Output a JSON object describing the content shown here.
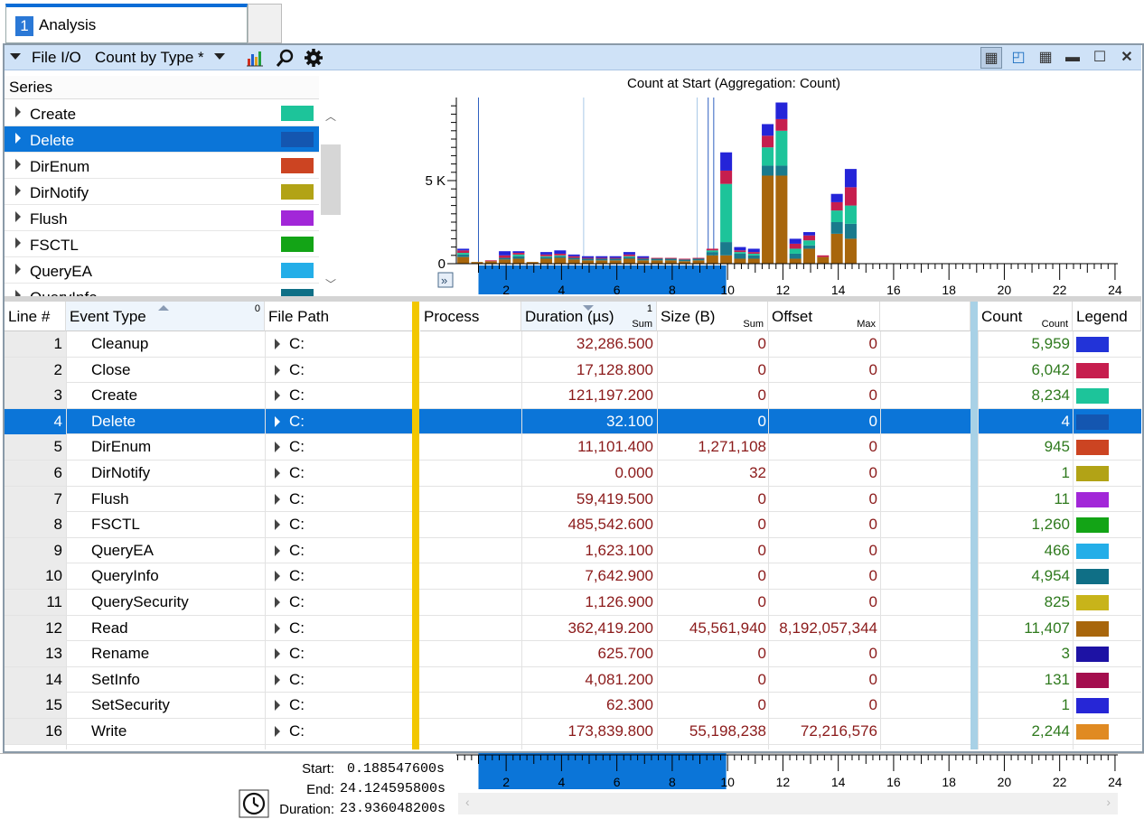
{
  "tab": {
    "number": "1",
    "label": "Analysis"
  },
  "toolbar": {
    "graph": "File I/O",
    "preset": "Count by Type *"
  },
  "series_header": "Series",
  "series": [
    {
      "label": "Create",
      "color": "#1dc49a"
    },
    {
      "label": "Delete",
      "color": "#1456b0"
    },
    {
      "label": "DirEnum",
      "color": "#cc4422"
    },
    {
      "label": "DirNotify",
      "color": "#b2a316"
    },
    {
      "label": "Flush",
      "color": "#a227d8"
    },
    {
      "label": "FSCTL",
      "color": "#13a416"
    },
    {
      "label": "QueryEA",
      "color": "#24aee8"
    },
    {
      "label": "QueryInfo",
      "color": "#0f6f86"
    }
  ],
  "chart_data": {
    "type": "bar",
    "title": "Count at Start (Aggregation: Count)",
    "y_ticks": [
      "0",
      "5 K"
    ],
    "x_ticks": [
      "2",
      "4",
      "6",
      "8",
      "10",
      "12",
      "14",
      "16",
      "18",
      "20",
      "22",
      "24"
    ],
    "xlim": [
      0.2,
      24.1
    ],
    "ylim": [
      0,
      10000
    ],
    "selection": [
      1.0,
      9.95
    ],
    "stack_colors": [
      "#a8660c",
      "#1a7a8c",
      "#1dc49a",
      "#c61e4e",
      "#2424d8"
    ],
    "bars": [
      {
        "x": 0.45,
        "stack": [
          400,
          150,
          100,
          150,
          100
        ]
      },
      {
        "x": 0.95,
        "stack": [
          100,
          0,
          0,
          0,
          0
        ]
      },
      {
        "x": 1.45,
        "stack": [
          150,
          0,
          0,
          50,
          0
        ]
      },
      {
        "x": 1.95,
        "stack": [
          250,
          100,
          0,
          150,
          250
        ]
      },
      {
        "x": 2.45,
        "stack": [
          300,
          150,
          100,
          100,
          100
        ]
      },
      {
        "x": 2.95,
        "stack": [
          100,
          0,
          0,
          0,
          0
        ]
      },
      {
        "x": 3.45,
        "stack": [
          300,
          100,
          50,
          100,
          150
        ]
      },
      {
        "x": 3.95,
        "stack": [
          350,
          100,
          50,
          100,
          200
        ]
      },
      {
        "x": 4.45,
        "stack": [
          250,
          100,
          0,
          100,
          100
        ]
      },
      {
        "x": 4.95,
        "stack": [
          200,
          100,
          0,
          50,
          100
        ]
      },
      {
        "x": 5.45,
        "stack": [
          200,
          100,
          0,
          50,
          100
        ]
      },
      {
        "x": 5.95,
        "stack": [
          200,
          100,
          0,
          50,
          100
        ]
      },
      {
        "x": 6.45,
        "stack": [
          300,
          100,
          50,
          100,
          150
        ]
      },
      {
        "x": 6.95,
        "stack": [
          200,
          100,
          0,
          50,
          100
        ]
      },
      {
        "x": 7.45,
        "stack": [
          200,
          100,
          0,
          50,
          0
        ]
      },
      {
        "x": 7.95,
        "stack": [
          200,
          100,
          0,
          50,
          0
        ]
      },
      {
        "x": 8.45,
        "stack": [
          150,
          100,
          0,
          50,
          0
        ]
      },
      {
        "x": 8.95,
        "stack": [
          200,
          100,
          0,
          50,
          0
        ]
      },
      {
        "x": 9.45,
        "stack": [
          500,
          200,
          100,
          100,
          0
        ]
      },
      {
        "x": 9.95,
        "stack": [
          500,
          800,
          3500,
          800,
          1100
        ]
      },
      {
        "x": 10.45,
        "stack": [
          300,
          300,
          100,
          100,
          200
        ]
      },
      {
        "x": 10.95,
        "stack": [
          300,
          200,
          100,
          100,
          200
        ]
      },
      {
        "x": 11.45,
        "stack": [
          5300,
          600,
          1100,
          700,
          700
        ]
      },
      {
        "x": 11.95,
        "stack": [
          5300,
          600,
          2100,
          700,
          1000
        ]
      },
      {
        "x": 12.45,
        "stack": [
          300,
          300,
          300,
          300,
          300
        ]
      },
      {
        "x": 12.95,
        "stack": [
          900,
          200,
          300,
          300,
          200
        ]
      },
      {
        "x": 13.45,
        "stack": [
          400,
          0,
          0,
          100,
          0
        ]
      },
      {
        "x": 13.95,
        "stack": [
          1800,
          700,
          700,
          500,
          500
        ]
      },
      {
        "x": 14.45,
        "stack": [
          1500,
          900,
          1100,
          1100,
          1100
        ]
      }
    ]
  },
  "table": {
    "headers": {
      "line": "Line #",
      "event_type": "Event Type",
      "event_type_badge": "0",
      "file_path": "File Path",
      "process": "Process",
      "duration": "Duration (µs)",
      "duration_badge": "1",
      "duration_sub": "Sum",
      "size": "Size (B)",
      "size_sub": "Sum",
      "offset": "Offset",
      "offset_sub": "Max",
      "count": "Count",
      "count_sub": "Count",
      "legend": "Legend"
    },
    "rows": [
      {
        "line": "1",
        "event": "Cleanup",
        "path": "C:",
        "duration": "32,286.500",
        "size": "0",
        "offset": "0",
        "count": "5,959",
        "color": "#2233d8"
      },
      {
        "line": "2",
        "event": "Close",
        "path": "C:",
        "duration": "17,128.800",
        "size": "0",
        "offset": "0",
        "count": "6,042",
        "color": "#c61e4e"
      },
      {
        "line": "3",
        "event": "Create",
        "path": "C:",
        "duration": "121,197.200",
        "size": "0",
        "offset": "0",
        "count": "8,234",
        "color": "#1dc49a"
      },
      {
        "line": "4",
        "event": "Delete",
        "path": "C:",
        "duration": "32.100",
        "size": "0",
        "offset": "0",
        "count": "4",
        "color": "#1456b0"
      },
      {
        "line": "5",
        "event": "DirEnum",
        "path": "C:",
        "duration": "11,101.400",
        "size": "1,271,108",
        "offset": "0",
        "count": "945",
        "color": "#cc4422"
      },
      {
        "line": "6",
        "event": "DirNotify",
        "path": "C:",
        "duration": "0.000",
        "size": "32",
        "offset": "0",
        "count": "1",
        "color": "#b2a316"
      },
      {
        "line": "7",
        "event": "Flush",
        "path": "C:",
        "duration": "59,419.500",
        "size": "0",
        "offset": "0",
        "count": "11",
        "color": "#a227d8"
      },
      {
        "line": "8",
        "event": "FSCTL",
        "path": "C:",
        "duration": "485,542.600",
        "size": "0",
        "offset": "0",
        "count": "1,260",
        "color": "#13a416"
      },
      {
        "line": "9",
        "event": "QueryEA",
        "path": "C:",
        "duration": "1,623.100",
        "size": "0",
        "offset": "0",
        "count": "466",
        "color": "#24aee8"
      },
      {
        "line": "10",
        "event": "QueryInfo",
        "path": "C:",
        "duration": "7,642.900",
        "size": "0",
        "offset": "0",
        "count": "4,954",
        "color": "#0f6f86"
      },
      {
        "line": "11",
        "event": "QuerySecurity",
        "path": "C:",
        "duration": "1,126.900",
        "size": "0",
        "offset": "0",
        "count": "825",
        "color": "#c8b41a"
      },
      {
        "line": "12",
        "event": "Read",
        "path": "C:",
        "duration": "362,419.200",
        "size": "45,561,940",
        "offset": "8,192,057,344",
        "count": "11,407",
        "color": "#a8660c"
      },
      {
        "line": "13",
        "event": "Rename",
        "path": "C:",
        "duration": "625.700",
        "size": "0",
        "offset": "0",
        "count": "3",
        "color": "#1d12a4"
      },
      {
        "line": "14",
        "event": "SetInfo",
        "path": "C:",
        "duration": "4,081.200",
        "size": "0",
        "offset": "0",
        "count": "131",
        "color": "#a40e4e"
      },
      {
        "line": "15",
        "event": "SetSecurity",
        "path": "C:",
        "duration": "62.300",
        "size": "0",
        "offset": "0",
        "count": "1",
        "color": "#2626d6"
      },
      {
        "line": "16",
        "event": "Write",
        "path": "C:",
        "duration": "173,839.800",
        "size": "55,198,238",
        "offset": "72,216,576",
        "count": "2,244",
        "color": "#e08a22"
      }
    ]
  },
  "timeline": {
    "start_label": "Start:",
    "start": "0.188547600s",
    "end_label": "End:",
    "end": "24.124595800s",
    "duration_label": "Duration:",
    "duration": "23.936048200s"
  }
}
